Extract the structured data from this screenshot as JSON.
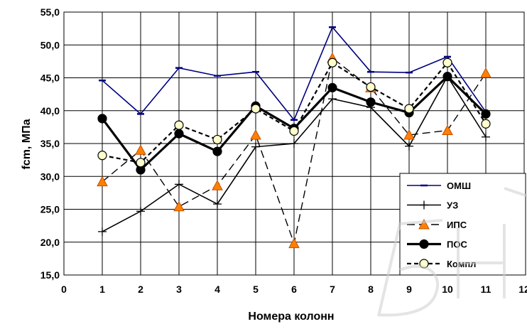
{
  "chart_data": {
    "type": "line",
    "x": [
      1,
      2,
      3,
      4,
      5,
      6,
      7,
      8,
      9,
      10,
      11
    ],
    "xlim": [
      0,
      12
    ],
    "ylim": [
      15,
      55
    ],
    "x_ticks": [
      "0",
      "1",
      "2",
      "3",
      "4",
      "5",
      "6",
      "7",
      "8",
      "9",
      "10",
      "11",
      "12"
    ],
    "y_ticks": [
      "15,0",
      "20,0",
      "25,0",
      "30,0",
      "35,0",
      "40,0",
      "45,0",
      "50,0",
      "55,0"
    ],
    "xlabel": "Номера колонн",
    "ylabel": "fcm, МПа",
    "grid": "horizontal and vertical",
    "legend_position": "bottom-right",
    "series": [
      {
        "name": "ОМШ",
        "color": "#000080",
        "marker": "dash",
        "line": "solid",
        "values": [
          44.6,
          39.5,
          46.5,
          45.3,
          45.9,
          38.6,
          52.7,
          45.9,
          45.8,
          48.2,
          39.8
        ]
      },
      {
        "name": "УЗ",
        "color": "#000000",
        "marker": "plus",
        "line": "solid",
        "values": [
          21.6,
          24.7,
          28.8,
          25.8,
          34.5,
          35.0,
          41.8,
          40.5,
          34.6,
          45.2,
          36.0
        ]
      },
      {
        "name": "ИПС",
        "color": "#000000",
        "marker": "triangle",
        "marker_fill": "#ff8000",
        "line": "long-dash",
        "values": [
          29.2,
          34.0,
          25.4,
          28.6,
          36.3,
          19.8,
          48.0,
          43.5,
          36.3,
          37.0,
          45.7
        ]
      },
      {
        "name": "ПОС",
        "color": "#000000",
        "marker": "circle",
        "marker_fill": "#000000",
        "line": "thick-solid",
        "values": [
          38.8,
          31.0,
          36.5,
          33.8,
          40.7,
          37.3,
          43.5,
          41.3,
          39.7,
          45.2,
          39.5
        ]
      },
      {
        "name": "Компл",
        "color": "#000000",
        "marker": "circle",
        "marker_fill": "#ffffcc",
        "line": "dashed",
        "values": [
          33.2,
          32.1,
          37.8,
          35.6,
          40.3,
          36.9,
          47.3,
          43.6,
          40.3,
          47.3,
          38.0
        ]
      }
    ]
  }
}
